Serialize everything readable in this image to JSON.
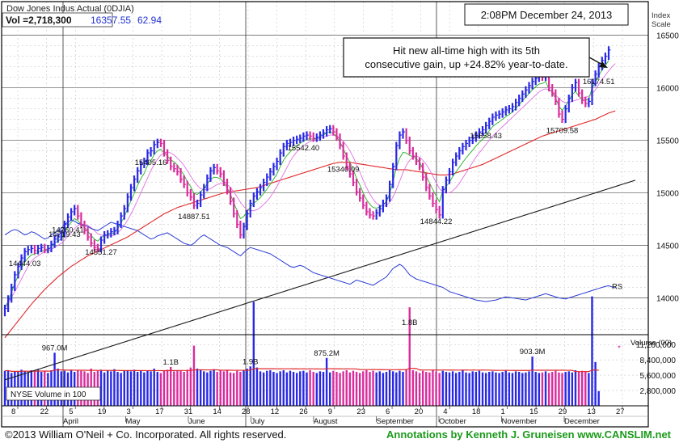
{
  "header": {
    "title": "Dow Jones Indus Actual  (0DJIA)",
    "vol_label": "Vol =2,718,300",
    "price": "16357.55",
    "change": "62.94",
    "timestamp": "2:08PM  December 24, 2013"
  },
  "annotation": "Hit new all-time high with its 5th consecutive gain, up +24.82% year-to-date.",
  "footer": {
    "copyright": "©2013 William O'Neil + Co. Incorporated. All rights reserved.",
    "annotations_credit": "Annotations by Kenneth J. Gruneisen www.CANSLIM.net"
  },
  "colors": {
    "up_bar": "#2828e6",
    "down_bar": "#d92c9c",
    "ma50": "#e0282a",
    "ma200": "#1a1a1a",
    "ma10": "#22b022",
    "ma21": "#e070e0",
    "rs_line": "#2a3cd6",
    "link_text": "#1a9a1a"
  },
  "chart_data": {
    "type": "line",
    "scale_label": "Index Scale",
    "price_axis": {
      "ylim": [
        13650,
        16820
      ],
      "ticks": [
        "14000",
        "14500",
        "15000",
        "15500",
        "16000",
        "16500"
      ]
    },
    "volume_axis": {
      "label": "Volume (00)",
      "ticks": [
        "11,200,000",
        "8,400,000",
        "5,600,000",
        "2,800,000"
      ],
      "legend": "NYSE Volume in 100",
      "average_marker": "*"
    },
    "x_axis": {
      "day_ticks": [
        "8",
        "22",
        "5",
        "19",
        "3",
        "17",
        "31",
        "14",
        "28",
        "12",
        "26",
        "9",
        "23",
        "6",
        "20",
        "4",
        "18",
        "1",
        "15",
        "29",
        "13",
        "27"
      ],
      "months": [
        "April",
        "May",
        "June",
        "July",
        "August",
        "September",
        "October",
        "November",
        "December"
      ]
    },
    "price_labels": [
      {
        "label": "14887.51",
        "value": 14887.51
      },
      {
        "label": "14444.03",
        "value": 14444.03
      },
      {
        "label": "15542.40",
        "value": 15542.4
      },
      {
        "label": "14844.22",
        "value": 14844.22
      },
      {
        "label": "15340.09",
        "value": 15340.09
      },
      {
        "label": "14551.27",
        "value": 14551.27
      },
      {
        "label": "15658.43",
        "value": 15658.43
      },
      {
        "label": "15405.16",
        "value": 15405.16
      },
      {
        "label": "14760.41",
        "value": 14760.41
      },
      {
        "label": "15709.58",
        "value": 15709.58
      },
      {
        "label": "14719.43",
        "value": 14719.43
      },
      {
        "label": "16174.51",
        "value": 16174.51
      }
    ],
    "volume_labels": [
      "967.0M",
      "1.1B",
      "1.9B",
      "875.2M",
      "1.8B",
      "903.3M"
    ],
    "rs_label": "RS",
    "close_series": [
      13900,
      13990,
      14100,
      14220,
      14300,
      14380,
      14440,
      14460,
      14470,
      14450,
      14470,
      14480,
      14460,
      14470,
      14510,
      14560,
      14580,
      14610,
      14700,
      14770,
      14820,
      14850,
      14780,
      14700,
      14640,
      14580,
      14520,
      14480,
      14470,
      14550,
      14600,
      14610,
      14630,
      14640,
      14700,
      14780,
      14850,
      14960,
      15050,
      15130,
      15210,
      15270,
      15300,
      15380,
      15400,
      15460,
      15480,
      15470,
      15380,
      15310,
      15250,
      15230,
      15200,
      15130,
      15080,
      15000,
      14960,
      14880,
      14900,
      14980,
      15050,
      15140,
      15210,
      15240,
      15210,
      15180,
      15100,
      15020,
      14920,
      14800,
      14700,
      14600,
      14680,
      14800,
      14900,
      14970,
      15010,
      15050,
      15100,
      15150,
      15200,
      15250,
      15300,
      15380,
      15440,
      15470,
      15480,
      15500,
      15510,
      15520,
      15540,
      15550,
      15540,
      15520,
      15530,
      15550,
      15570,
      15600,
      15610,
      15580,
      15530,
      15450,
      15350,
      15250,
      15180,
      15100,
      15010,
      14950,
      14880,
      14820,
      14790,
      14780,
      14810,
      14850,
      14900,
      14950,
      15080,
      15250,
      15450,
      15550,
      15580,
      15500,
      15400,
      15350,
      15300,
      15250,
      15150,
      15050,
      14970,
      14900,
      14840,
      14790,
      15030,
      15120,
      15200,
      15290,
      15350,
      15400,
      15440,
      15470,
      15500,
      15520,
      15550,
      15580,
      15600,
      15640,
      15680,
      15720,
      15740,
      15750,
      15770,
      15790,
      15800,
      15820,
      15860,
      15900,
      15940,
      15980,
      16020,
      16060,
      16090,
      16110,
      16100,
      16130,
      16000,
      15950,
      15870,
      15750,
      15700,
      15800,
      15900,
      16000,
      16050,
      15950,
      15880,
      15850,
      15870,
      16050,
      16130,
      16200,
      16260,
      16300,
      16360
    ],
    "volume_series": [
      6.4,
      6.5,
      6.0,
      6.3,
      6.2,
      6.6,
      6.4,
      6.1,
      6.5,
      6.3,
      6.7,
      6.2,
      6.4,
      6.0,
      6.5,
      9.7,
      6.8,
      6.3,
      6.4,
      6.1,
      6.6,
      6.2,
      6.5,
      6.4,
      6.3,
      6.0,
      6.8,
      6.2,
      6.4,
      6.6,
      6.1,
      6.5,
      6.3,
      6.7,
      6.2,
      6.0,
      6.4,
      6.5,
      6.3,
      6.6,
      6.2,
      6.4,
      6.1,
      6.5,
      6.3,
      6.8,
      6.2,
      6.0,
      6.4,
      6.6,
      7.1,
      6.3,
      6.5,
      6.4,
      6.2,
      6.6,
      7.0,
      11.0,
      6.8,
      6.5,
      6.3,
      6.1,
      6.4,
      6.7,
      6.2,
      6.5,
      6.3,
      6.6,
      6.1,
      6.0,
      6.4,
      6.2,
      6.5,
      6.8,
      7.2,
      19.0,
      7.0,
      6.3,
      6.1,
      6.4,
      6.5,
      6.2,
      6.0,
      6.3,
      6.5,
      6.1,
      6.4,
      6.2,
      6.0,
      6.3,
      6.4,
      6.1,
      6.5,
      6.2,
      6.0,
      6.3,
      6.2,
      8.75,
      6.1,
      6.4,
      6.2,
      6.0,
      6.3,
      6.5,
      6.1,
      6.4,
      6.2,
      6.0,
      6.3,
      6.5,
      6.2,
      6.4,
      6.1,
      6.3,
      6.0,
      6.2,
      6.5,
      6.3,
      6.1,
      6.4,
      6.2,
      6.6,
      18.0,
      6.5,
      6.3,
      6.0,
      6.4,
      6.2,
      6.1,
      6.5,
      6.3,
      6.0,
      6.4,
      6.2,
      6.1,
      6.3,
      6.0,
      6.2,
      6.5,
      6.1,
      6.0,
      6.3,
      6.2,
      6.4,
      6.1,
      6.0,
      6.2,
      6.3,
      6.1,
      6.0,
      6.2,
      6.4,
      6.1,
      6.0,
      6.3,
      6.2,
      6.0,
      6.1,
      6.3,
      9.0,
      6.2,
      6.0,
      6.1,
      6.3,
      6.0,
      6.2,
      6.4,
      6.1,
      6.0,
      6.2,
      6.3,
      6.1,
      6.5,
      6.2,
      6.4,
      6.3,
      6.0,
      20.0,
      8.0,
      2.7
    ],
    "ma10_series": [
      13900,
      13950,
      14005,
      14060,
      14120,
      14180,
      14240,
      14300,
      14350,
      14380,
      14400,
      14420,
      14440,
      14450,
      14460,
      14480,
      14500,
      14520,
      14550,
      14590,
      14620,
      14660,
      14690,
      14700,
      14700,
      14690,
      14670,
      14640,
      14610,
      14600,
      14590,
      14590,
      14590,
      14600,
      14620,
      14650,
      14690,
      14740,
      14800,
      14860,
      14930,
      15000,
      15070,
      15140,
      15210,
      15270,
      15320,
      15360,
      15380,
      15390,
      15380,
      15360,
      15330,
      15300,
      15260,
      15210,
      15160,
      15110,
      15070,
      15040,
      15030,
      15030,
      15040,
      15060,
      15080,
      15090,
      15090,
      15080,
      15050,
      15010,
      14960,
      14910,
      14870,
      14840,
      14830,
      14830,
      14840,
      14860,
      14890,
      14920,
      14960,
      15010,
      15060,
      15120,
      15180,
      15240,
      15300,
      15350,
      15390,
      15420,
      15450,
      15470,
      15490,
      15500,
      15510,
      15520,
      15530,
      15540,
      15550,
      15550,
      15540,
      15520,
      15490,
      15450,
      15400,
      15340,
      15270,
      15200,
      15120,
      15050,
      14990,
      14940,
      14900,
      14880,
      14870,
      14880,
      14910,
      14960,
      15030,
      15110,
      15190,
      15260,
      15310,
      15340,
      15350,
      15340,
      15310,
      15270,
      15220,
      15160,
      15100,
      15040,
      15010,
      15000,
      15000,
      15020,
      15050,
      15090,
      15140,
      15190,
      15240,
      15290,
      15340,
      15380,
      15420,
      15460,
      15500,
      15540,
      15570,
      15600,
      15630,
      15660,
      15690,
      15720,
      15750,
      15780,
      15810,
      15840,
      15870,
      15900,
      15930,
      15960,
      15980,
      15990,
      15980,
      15960,
      15930,
      15900,
      15870,
      15860,
      15860,
      15870,
      15880,
      15890,
      15900,
      15910,
      15920,
      15940,
      15980,
      16030,
      16080,
      16120,
      16160,
      16200,
      16230
    ],
    "ma50_series": [
      13620,
      13660,
      13700,
      13740,
      13780,
      13820,
      13860,
      13900,
      13940,
      13975,
      14010,
      14045,
      14080,
      14110,
      14140,
      14170,
      14200,
      14225,
      14250,
      14275,
      14300,
      14320,
      14340,
      14360,
      14380,
      14400,
      14415,
      14430,
      14445,
      14460,
      14475,
      14490,
      14505,
      14520,
      14535,
      14550,
      14565,
      14580,
      14600,
      14620,
      14640,
      14660,
      14680,
      14700,
      14720,
      14740,
      14760,
      14780,
      14800,
      14815,
      14830,
      14845,
      14860,
      14870,
      14880,
      14890,
      14900,
      14910,
      14920,
      14930,
      14940,
      14950,
      14960,
      14970,
      14980,
      14990,
      15000,
      15005,
      15010,
      15015,
      15020,
      15025,
      15030,
      15035,
      15040,
      15045,
      15050,
      15060,
      15070,
      15080,
      15090,
      15100,
      15110,
      15120,
      15130,
      15140,
      15150,
      15160,
      15170,
      15180,
      15190,
      15200,
      15210,
      15220,
      15230,
      15240,
      15250,
      15260,
      15270,
      15280,
      15285,
      15290,
      15290,
      15290,
      15290,
      15285,
      15280,
      15275,
      15270,
      15265,
      15260,
      15255,
      15250,
      15245,
      15240,
      15235,
      15230,
      15225,
      15220,
      15220,
      15220,
      15220,
      15215,
      15210,
      15205,
      15200,
      15195,
      15190,
      15185,
      15180,
      15175,
      15170,
      15170,
      15170,
      15175,
      15180,
      15190,
      15200,
      15210,
      15220,
      15230,
      15240,
      15250,
      15260,
      15270,
      15285,
      15300,
      15315,
      15330,
      15345,
      15360,
      15375,
      15390,
      15405,
      15420,
      15435,
      15450,
      15465,
      15480,
      15495,
      15510,
      15525,
      15540,
      15550,
      15560,
      15570,
      15580,
      15590,
      15600,
      15610,
      15620,
      15630,
      15640,
      15650,
      15660,
      15670,
      15680,
      15690,
      15700,
      15715,
      15730,
      15745,
      15760,
      15770,
      15780
    ],
    "ma200_series": [
      13220,
      13230,
      13240,
      13250,
      13260,
      13270,
      13280,
      13290,
      13300,
      13310,
      13320,
      13330,
      13340,
      13350,
      13360,
      13370,
      13380,
      13390,
      13400,
      13410,
      13420,
      13430,
      13440,
      13450,
      13460,
      13470,
      13480,
      13490,
      13500,
      13510,
      13520,
      13530,
      13540,
      13550,
      13560,
      13570,
      13580,
      13590,
      13600,
      13610,
      13620,
      13630,
      13640,
      13650,
      13660,
      13670,
      13680,
      13690,
      13700,
      13710,
      13720,
      13730,
      13740,
      13750,
      13760,
      13770,
      13780,
      13790,
      13800,
      13810,
      13820,
      13830,
      13840,
      13850,
      13860,
      13870,
      13880,
      13890,
      13900,
      13910,
      13920,
      13930,
      13940,
      13950,
      13960,
      13970,
      13980,
      13990,
      14000,
      14010,
      14020,
      14030,
      14040,
      14050,
      14060,
      14070,
      14080,
      14090,
      14100,
      14110,
      14120,
      14130,
      14140,
      14150,
      14160,
      14170,
      14180,
      14190,
      14200,
      14210,
      14220,
      14230,
      14240,
      14250,
      14260,
      14270,
      14280,
      14290,
      14300,
      14310,
      14320,
      14330,
      14340,
      14350,
      14360,
      14370,
      14380,
      14390,
      14400,
      14410,
      14420,
      14430,
      14440,
      14450,
      14460,
      14470,
      14480,
      14490,
      14500,
      14510,
      14520,
      14530,
      14540,
      14550,
      14560,
      14570,
      14580,
      14590,
      14600,
      14610,
      14620,
      14630,
      14640,
      14650,
      14660,
      14670,
      14680,
      14690,
      14700,
      14710,
      14720,
      14730,
      14740,
      14750,
      14760,
      14770,
      14780,
      14790,
      14800,
      14810,
      14820,
      14830,
      14840,
      14850,
      14860,
      14870,
      14880,
      14890,
      14900,
      14910,
      14920,
      14930,
      14940,
      14950,
      14960,
      14970,
      14980,
      14990,
      15000,
      15010,
      15020,
      15030,
      15040,
      15050,
      15060,
      15070,
      15080,
      15090,
      15100,
      15110,
      15120
    ],
    "rs_series": [
      14600,
      14620,
      14640,
      14650,
      14640,
      14620,
      14600,
      14610,
      14630,
      14620,
      14600,
      14580,
      14560,
      14570,
      14600,
      14620,
      14640,
      14660,
      14700,
      14720,
      14740,
      14730,
      14710,
      14700,
      14690,
      14680,
      14660,
      14650,
      14640,
      14660,
      14680,
      14700,
      14720,
      14710,
      14700,
      14690,
      14680,
      14670,
      14660,
      14650,
      14640,
      14620,
      14600,
      14580,
      14560,
      14570,
      14590,
      14600,
      14610,
      14620,
      14600,
      14580,
      14560,
      14540,
      14520,
      14510,
      14500,
      14520,
      14550,
      14580,
      14600,
      14580,
      14560,
      14540,
      14520,
      14500,
      14490,
      14480,
      14460,
      14440,
      14420,
      14400,
      14430,
      14460,
      14480,
      14470,
      14460,
      14450,
      14440,
      14430,
      14420,
      14400,
      14380,
      14360,
      14340,
      14320,
      14300,
      14290,
      14300,
      14310,
      14300,
      14280,
      14260,
      14240,
      14230,
      14220,
      14210,
      14200,
      14190,
      14180,
      14170,
      14160,
      14150,
      14140,
      14130,
      14150,
      14170,
      14160,
      14150,
      14140,
      14130,
      14120,
      14140,
      14160,
      14180,
      14200,
      14240,
      14280,
      14300,
      14320,
      14300,
      14260,
      14220,
      14200,
      14180,
      14170,
      14160,
      14150,
      14140,
      14130,
      14120,
      14110,
      14100,
      14080,
      14060,
      14050,
      14040,
      14030,
      14020,
      14010,
      14000,
      13990,
      13980,
      13975,
      13970,
      13965,
      13970,
      13975,
      13980,
      13990,
      14000,
      14010,
      14005,
      14000,
      13995,
      13990,
      13985,
      13980,
      13990,
      14000,
      14010,
      14020,
      14030,
      14040,
      14030,
      14020,
      14010,
      14000,
      13995,
      13990,
      14000,
      14010,
      14020,
      14030,
      14040,
      14050,
      14060,
      14070,
      14080,
      14090,
      14100,
      14110,
      14115,
      14105,
      14095
    ]
  }
}
